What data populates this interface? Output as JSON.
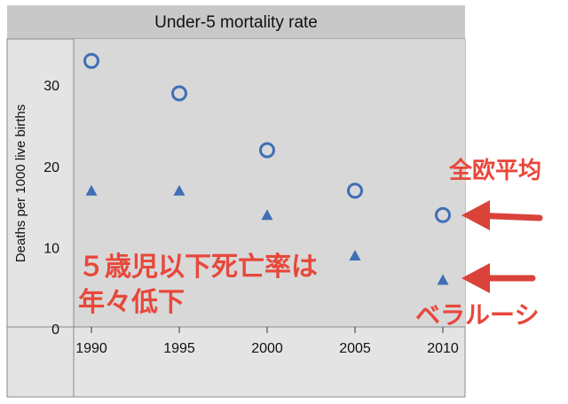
{
  "chart_data": {
    "type": "scatter",
    "title": "Under-5 mortality rate",
    "ylabel": "Deaths per 1000 live births",
    "xlabel": "",
    "x": [
      1990,
      1995,
      2000,
      2005,
      2010
    ],
    "x_tick_labels": [
      "1990",
      "1995",
      "2000",
      "2005",
      "2010"
    ],
    "y_tick_labels": [
      "0",
      "10",
      "20",
      "30"
    ],
    "ylim": [
      0,
      35
    ],
    "grid": false,
    "series": [
      {
        "name": "全欧平均",
        "marker": "circle",
        "color": "#3f6fb5",
        "values": [
          33,
          29,
          22,
          17,
          14
        ]
      },
      {
        "name": "ベラルーシ",
        "marker": "triangle",
        "color": "#3f6fb5",
        "values": [
          17,
          17,
          14,
          9,
          6
        ]
      }
    ]
  },
  "annotations": {
    "note_line1": "５歳児以下死亡率は",
    "note_line2": "年々低下",
    "europe_average": "全欧平均",
    "belarus": "ベラルーシ",
    "arrow_color": "#d9433a",
    "text_color": "#e8473b"
  }
}
